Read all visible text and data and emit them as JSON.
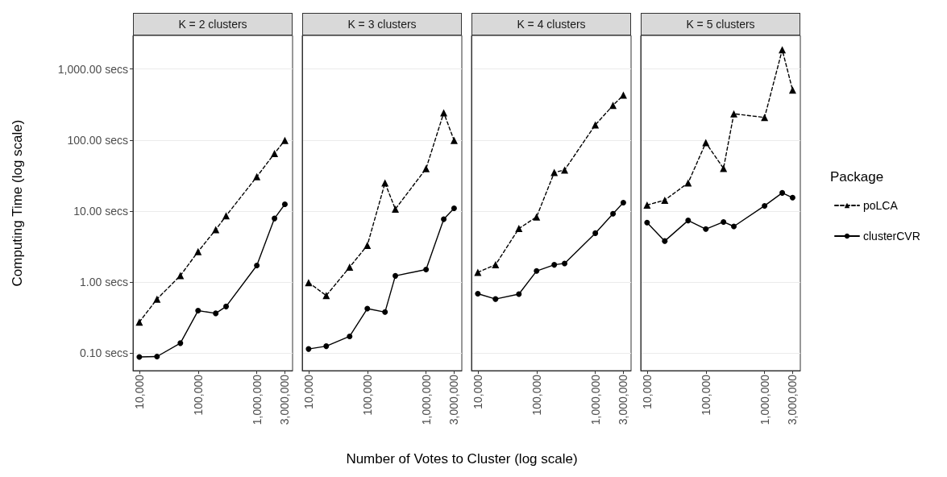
{
  "chart_data": [
    {
      "type": "line",
      "title": "K = 2 clusters",
      "ylabel": "Computing Time (log scale)",
      "x": [
        10000,
        20000,
        50000,
        100000,
        200000,
        300000,
        1000000,
        2000000,
        3000000
      ],
      "series": [
        {
          "color": "#000000",
          "marker": "triangle",
          "line_style": "dashed",
          "values": [
            0.275,
            0.58,
            1.24,
            2.7,
            5.5,
            8.6,
            30.5,
            65,
            99
          ]
        },
        {
          "color": "#000000",
          "marker": "circle",
          "line_style": "solid",
          "values": [
            0.089,
            0.09,
            0.139,
            0.398,
            0.365,
            0.456,
            1.72,
            7.9,
            12.5
          ]
        }
      ],
      "xlim": [
        7800,
        4060000
      ],
      "xticks": [
        {
          "value": 10000,
          "label": "10,000"
        },
        {
          "value": 100000,
          "label": "100,000"
        },
        {
          "value": 1000000,
          "label": "1,000,000"
        },
        {
          "value": 3000000,
          "label": "3,000,000"
        }
      ],
      "ylim": [
        0.057,
        2970
      ],
      "yticks": [
        {
          "value": 0.1,
          "label": "0.10 secs"
        },
        {
          "value": 1,
          "label": "1.00 secs"
        },
        {
          "value": 10,
          "label": "10.00 secs"
        },
        {
          "value": 100,
          "label": "100.00 secs"
        },
        {
          "value": 1000,
          "label": "1,000.00 secs"
        }
      ],
      "log": "xy",
      "grid": "y"
    },
    {
      "type": "line",
      "title": "K = 3 clusters",
      "xlabel": "Number of Votes to Cluster (log scale)",
      "x": [
        10000,
        20000,
        50000,
        100000,
        200000,
        300000,
        1000000,
        2000000,
        3000000
      ],
      "series": [
        {
          "color": "#000000",
          "marker": "triangle",
          "line_style": "dashed",
          "values": [
            0.99,
            0.65,
            1.63,
            3.3,
            25,
            10.7,
            39.7,
            243,
            99
          ]
        },
        {
          "color": "#000000",
          "marker": "circle",
          "line_style": "solid",
          "values": [
            0.115,
            0.126,
            0.173,
            0.425,
            0.38,
            1.23,
            1.51,
            7.7,
            11
          ]
        }
      ],
      "xlim": [
        7800,
        4060000
      ],
      "xticks": [
        {
          "value": 10000,
          "label": "10,000"
        },
        {
          "value": 100000,
          "label": "100,000"
        },
        {
          "value": 1000000,
          "label": "1,000,000"
        },
        {
          "value": 3000000,
          "label": "3,000,000"
        }
      ],
      "ylim": [
        0.057,
        2970
      ],
      "yticks": [
        0.1,
        1,
        10,
        100,
        1000
      ],
      "log": "xy",
      "grid": "y",
      "tick_labels": "x"
    },
    {
      "type": "line",
      "title": "K = 4 clusters",
      "x": [
        10000,
        20000,
        50000,
        100000,
        200000,
        300000,
        1000000,
        2000000,
        3000000
      ],
      "series": [
        {
          "color": "#000000",
          "marker": "triangle",
          "line_style": "dashed",
          "values": [
            1.38,
            1.76,
            5.7,
            8.3,
            35,
            38,
            164,
            308,
            430
          ]
        },
        {
          "color": "#000000",
          "marker": "circle",
          "line_style": "solid",
          "values": [
            0.69,
            0.58,
            0.68,
            1.44,
            1.76,
            1.84,
            4.9,
            9.2,
            13.2
          ]
        }
      ],
      "xlim": [
        7800,
        4060000
      ],
      "xticks": [
        {
          "value": 10000,
          "label": "10,000"
        },
        {
          "value": 100000,
          "label": "100,000"
        },
        {
          "value": 1000000,
          "label": "1,000,000"
        },
        {
          "value": 3000000,
          "label": "3,000,000"
        }
      ],
      "ylim": [
        0.057,
        2970
      ],
      "yticks": [
        0.1,
        1,
        10,
        100,
        1000
      ],
      "log": "xy",
      "grid": "y",
      "tick_labels": "x"
    },
    {
      "type": "line",
      "title": "K = 5 clusters",
      "legend": "right",
      "legend_title": "Package",
      "x": [
        10000,
        20000,
        50000,
        100000,
        200000,
        300000,
        1000000,
        2000000,
        3000000
      ],
      "series": [
        {
          "name": "poLCA",
          "color": "#000000",
          "marker": "triangle",
          "line_style": "dashed",
          "values": [
            12.2,
            14.3,
            25,
            92,
            40,
            235,
            208,
            1870,
            505
          ]
        },
        {
          "name": "clusterCVR",
          "color": "#000000",
          "marker": "circle",
          "line_style": "solid",
          "values": [
            6.9,
            3.8,
            7.4,
            5.6,
            7.05,
            6.1,
            11.9,
            18.1,
            15.5
          ]
        }
      ],
      "xlim": [
        7800,
        4060000
      ],
      "xticks": [
        {
          "value": 10000,
          "label": "10,000"
        },
        {
          "value": 100000,
          "label": "100,000"
        },
        {
          "value": 1000000,
          "label": "1,000,000"
        },
        {
          "value": 3000000,
          "label": "3,000,000"
        }
      ],
      "ylim": [
        0.057,
        2970
      ],
      "yticks": [
        0.1,
        1,
        10,
        100,
        1000
      ],
      "log": "xy",
      "grid": "y",
      "tick_labels": "x"
    }
  ]
}
